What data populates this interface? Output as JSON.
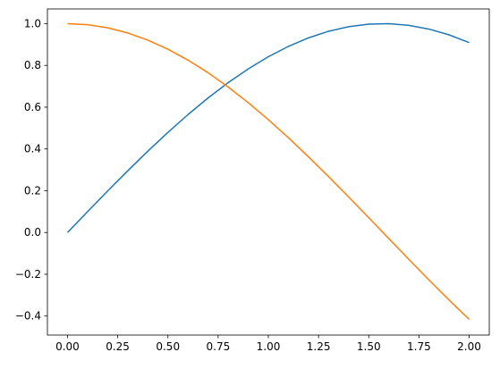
{
  "chart_data": {
    "type": "line",
    "title": "",
    "xlabel": "",
    "ylabel": "",
    "xlim": [
      -0.1,
      2.1
    ],
    "ylim": [
      -0.4909,
      1.0704
    ],
    "grid": false,
    "legend": "none",
    "x_ticks": [
      0.0,
      0.25,
      0.5,
      0.75,
      1.0,
      1.25,
      1.5,
      1.75,
      2.0
    ],
    "x_tick_labels": [
      "0.00",
      "0.25",
      "0.50",
      "0.75",
      "1.00",
      "1.25",
      "1.50",
      "1.75",
      "2.00"
    ],
    "y_ticks": [
      -0.4,
      -0.2,
      0.0,
      0.2,
      0.4,
      0.6,
      0.8,
      1.0
    ],
    "y_tick_labels": [
      "−0.4",
      "−0.2",
      "0.0",
      "0.2",
      "0.4",
      "0.6",
      "0.8",
      "1.0"
    ],
    "x": [
      0.0,
      0.1,
      0.2,
      0.3,
      0.4,
      0.5,
      0.6,
      0.7,
      0.8,
      0.9,
      1.0,
      1.1,
      1.2,
      1.3,
      1.4,
      1.5,
      1.6,
      1.7,
      1.8,
      1.9,
      2.0
    ],
    "series": [
      {
        "color": "#1f77b4",
        "values": [
          0.0,
          0.0998,
          0.1987,
          0.2955,
          0.3894,
          0.4794,
          0.5646,
          0.6442,
          0.7174,
          0.7833,
          0.8415,
          0.8912,
          0.932,
          0.9636,
          0.9854,
          0.9975,
          0.9996,
          0.9917,
          0.9738,
          0.9463,
          0.9093
        ]
      },
      {
        "color": "#ff7f0e",
        "values": [
          1.0,
          0.995,
          0.9801,
          0.9553,
          0.9211,
          0.8776,
          0.8253,
          0.7648,
          0.6967,
          0.6216,
          0.5403,
          0.4536,
          0.3624,
          0.2675,
          0.17,
          0.0707,
          -0.0292,
          -0.1288,
          -0.2272,
          -0.3233,
          -0.4161
        ]
      }
    ]
  }
}
